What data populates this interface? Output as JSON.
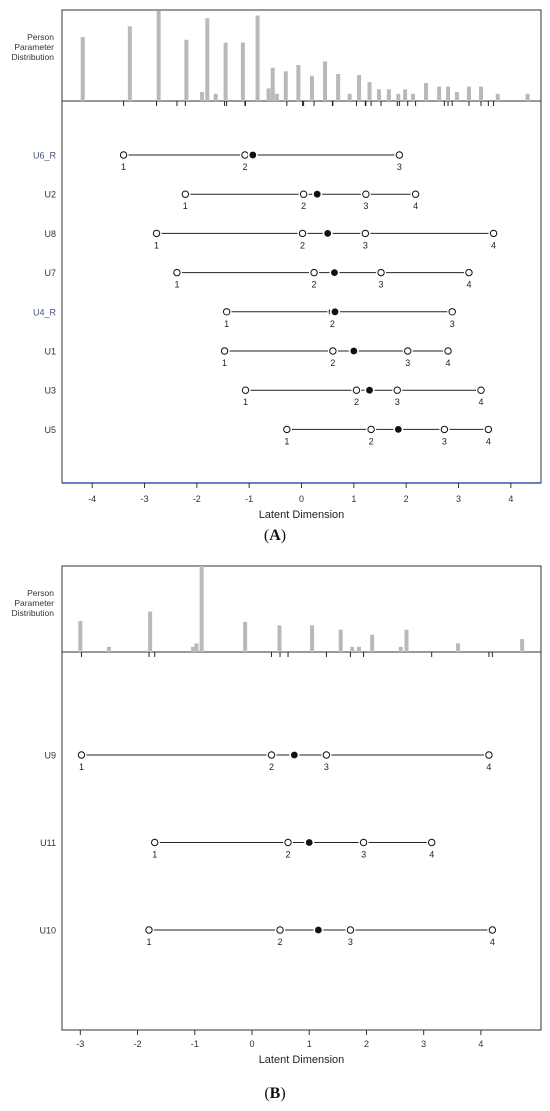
{
  "figure_labels": {
    "a": "A",
    "b": "B"
  },
  "chart_data": [
    {
      "type": "scatter",
      "panel": "A",
      "title": "",
      "hist_label": [
        "Person",
        "Parameter",
        "Distribution"
      ],
      "xlabel": "Latent Dimension",
      "ylabel": "",
      "xlim": [
        -4.5,
        4.5
      ],
      "xticks": [
        -4,
        -3,
        -2,
        -1,
        0,
        1,
        2,
        3,
        4
      ],
      "grid": false,
      "person_distribution": [
        {
          "x": -4.18,
          "h": 0.71
        },
        {
          "x": -3.28,
          "h": 0.83
        },
        {
          "x": -2.73,
          "h": 1.0
        },
        {
          "x": -2.2,
          "h": 0.68
        },
        {
          "x": -1.9,
          "h": 0.1
        },
        {
          "x": -1.8,
          "h": 0.92
        },
        {
          "x": -1.64,
          "h": 0.08
        },
        {
          "x": -1.45,
          "h": 0.65
        },
        {
          "x": -1.12,
          "h": 0.65
        },
        {
          "x": -0.84,
          "h": 0.95
        },
        {
          "x": -0.63,
          "h": 0.14
        },
        {
          "x": -0.55,
          "h": 0.37
        },
        {
          "x": -0.47,
          "h": 0.08
        },
        {
          "x": -0.3,
          "h": 0.33
        },
        {
          "x": -0.06,
          "h": 0.4
        },
        {
          "x": 0.2,
          "h": 0.28
        },
        {
          "x": 0.45,
          "h": 0.44
        },
        {
          "x": 0.7,
          "h": 0.3
        },
        {
          "x": 0.92,
          "h": 0.08
        },
        {
          "x": 1.1,
          "h": 0.29
        },
        {
          "x": 1.3,
          "h": 0.21
        },
        {
          "x": 1.48,
          "h": 0.13
        },
        {
          "x": 1.67,
          "h": 0.13
        },
        {
          "x": 1.85,
          "h": 0.08
        },
        {
          "x": 1.98,
          "h": 0.13
        },
        {
          "x": 2.13,
          "h": 0.08
        },
        {
          "x": 2.38,
          "h": 0.2
        },
        {
          "x": 2.63,
          "h": 0.16
        },
        {
          "x": 2.8,
          "h": 0.16
        },
        {
          "x": 2.97,
          "h": 0.1
        },
        {
          "x": 3.2,
          "h": 0.16
        },
        {
          "x": 3.43,
          "h": 0.16
        },
        {
          "x": 3.75,
          "h": 0.08
        },
        {
          "x": 4.32,
          "h": 0.08
        }
      ],
      "series": [
        {
          "item": "U6_R",
          "item_label_color": "#44557a",
          "mean": -0.93,
          "thresholds": [
            -3.4,
            -1.08,
            1.87
          ],
          "threshold_labels": [
            "1",
            "2",
            "3"
          ]
        },
        {
          "item": "U2",
          "item_label_color": "#333333",
          "mean": 0.3,
          "thresholds": [
            -2.22,
            0.04,
            1.23,
            2.18
          ],
          "threshold_labels": [
            "1",
            "2",
            "3",
            "4"
          ]
        },
        {
          "item": "U8",
          "item_label_color": "#333333",
          "mean": 0.5,
          "thresholds": [
            -2.77,
            0.02,
            1.22,
            3.67
          ],
          "threshold_labels": [
            "1",
            "2",
            "3",
            "4"
          ]
        },
        {
          "item": "U7",
          "item_label_color": "#333333",
          "mean": 0.63,
          "thresholds": [
            -2.38,
            0.24,
            1.52,
            3.2
          ],
          "threshold_labels": [
            "1",
            "2",
            "3",
            "4"
          ]
        },
        {
          "item": "U4_R",
          "item_label_color": "#44557a",
          "mean": 0.64,
          "thresholds": [
            -1.43,
            0.59,
            2.88
          ],
          "threshold_labels": [
            "1",
            "2",
            "3"
          ]
        },
        {
          "item": "U1",
          "item_label_color": "#333333",
          "mean": 1.0,
          "thresholds": [
            -1.47,
            0.6,
            2.03,
            2.8
          ],
          "threshold_labels": [
            "1",
            "2",
            "3",
            "4"
          ]
        },
        {
          "item": "U3",
          "item_label_color": "#333333",
          "mean": 1.3,
          "thresholds": [
            -1.07,
            1.05,
            1.83,
            3.43
          ],
          "threshold_labels": [
            "1",
            "2",
            "3",
            "4"
          ]
        },
        {
          "item": "U5",
          "item_label_color": "#333333",
          "mean": 1.85,
          "thresholds": [
            -0.28,
            1.33,
            2.73,
            3.57
          ],
          "threshold_labels": [
            "1",
            "2",
            "3",
            "4"
          ]
        }
      ]
    },
    {
      "type": "scatter",
      "panel": "B",
      "title": "",
      "hist_label": [
        "Person",
        "Parameter",
        "Distribution"
      ],
      "xlabel": "Latent Dimension",
      "ylabel": "",
      "xlim": [
        -3.25,
        4.98
      ],
      "xticks": [
        -3,
        -2,
        -1,
        0,
        1,
        2,
        3,
        4
      ],
      "grid": false,
      "person_distribution": [
        {
          "x": -3.0,
          "h": 0.36
        },
        {
          "x": -2.5,
          "h": 0.06
        },
        {
          "x": -1.78,
          "h": 0.47
        },
        {
          "x": -1.03,
          "h": 0.06
        },
        {
          "x": -0.97,
          "h": 0.1
        },
        {
          "x": -0.88,
          "h": 1.0
        },
        {
          "x": -0.12,
          "h": 0.35
        },
        {
          "x": 0.48,
          "h": 0.31
        },
        {
          "x": 1.05,
          "h": 0.31
        },
        {
          "x": 1.55,
          "h": 0.26
        },
        {
          "x": 1.75,
          "h": 0.06
        },
        {
          "x": 1.87,
          "h": 0.06
        },
        {
          "x": 2.1,
          "h": 0.2
        },
        {
          "x": 2.6,
          "h": 0.06
        },
        {
          "x": 2.7,
          "h": 0.26
        },
        {
          "x": 3.6,
          "h": 0.1
        },
        {
          "x": 4.72,
          "h": 0.15
        }
      ],
      "series": [
        {
          "item": "U9",
          "item_label_color": "#333333",
          "mean": 0.74,
          "thresholds": [
            -2.98,
            0.34,
            1.3,
            4.14
          ],
          "threshold_labels": [
            "1",
            "2",
            "3",
            "4"
          ]
        },
        {
          "item": "U11",
          "item_label_color": "#333333",
          "mean": 1.0,
          "thresholds": [
            -1.7,
            0.63,
            1.95,
            3.14
          ],
          "threshold_labels": [
            "1",
            "2",
            "3",
            "4"
          ]
        },
        {
          "item": "U10",
          "item_label_color": "#333333",
          "mean": 1.16,
          "thresholds": [
            -1.8,
            0.49,
            1.72,
            4.2
          ],
          "threshold_labels": [
            "1",
            "2",
            "3",
            "4"
          ]
        }
      ]
    }
  ]
}
